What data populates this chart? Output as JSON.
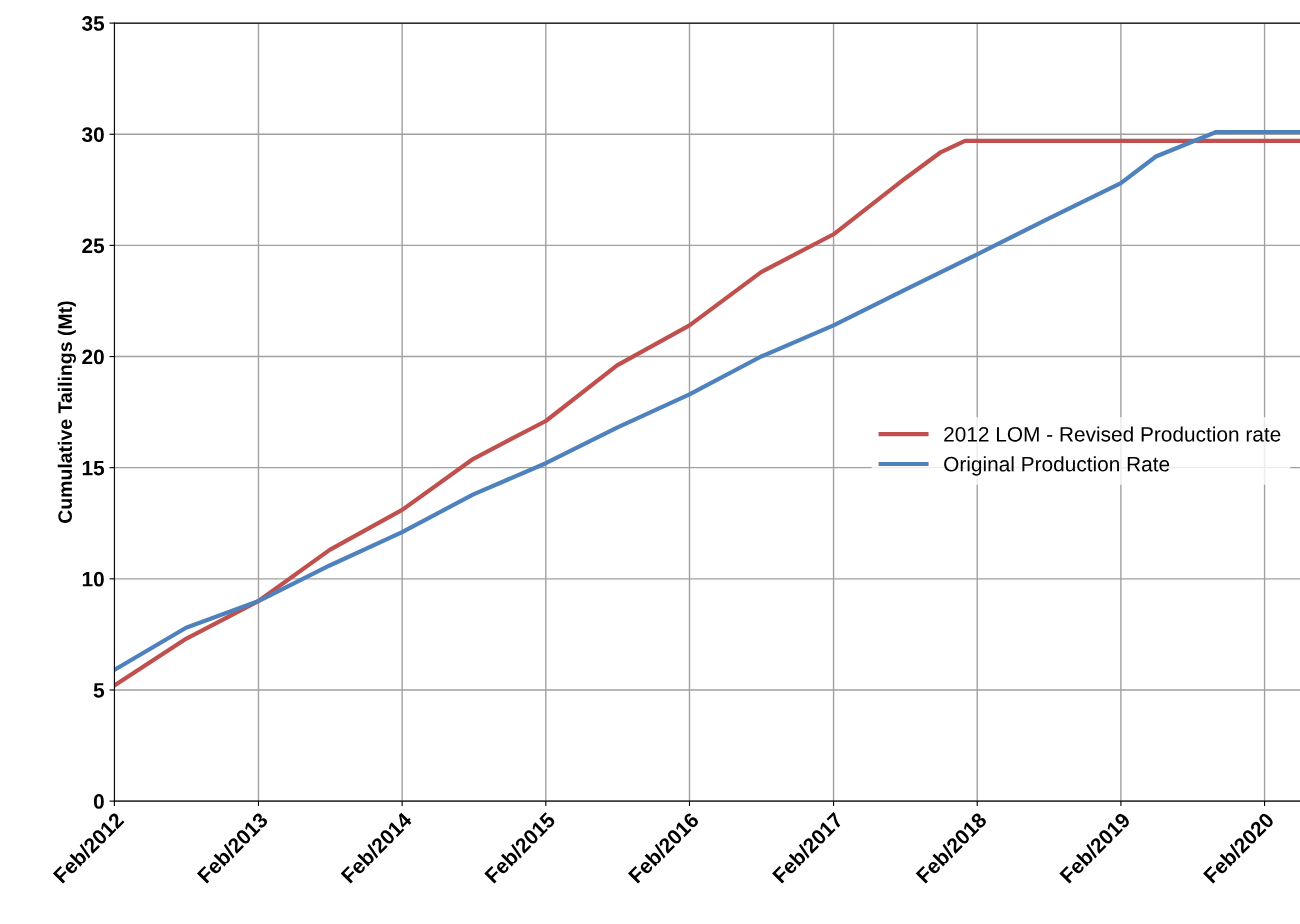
{
  "chart_data": {
    "type": "line",
    "ylabel": "Cumulative Tailings (Mt)",
    "xlim": [
      "2012-02",
      "2020-05"
    ],
    "ylim": [
      0,
      35
    ],
    "yticks": [
      0,
      5,
      10,
      15,
      20,
      25,
      30,
      35
    ],
    "xticks": [
      {
        "value": "2012-02",
        "label": "Feb/2012"
      },
      {
        "value": "2013-02",
        "label": "Feb/2013"
      },
      {
        "value": "2014-02",
        "label": "Feb/2014"
      },
      {
        "value": "2015-02",
        "label": "Feb/2015"
      },
      {
        "value": "2016-02",
        "label": "Feb/2016"
      },
      {
        "value": "2017-02",
        "label": "Feb/2017"
      },
      {
        "value": "2018-02",
        "label": "Feb/2018"
      },
      {
        "value": "2019-02",
        "label": "Feb/2019"
      },
      {
        "value": "2020-02",
        "label": "Feb/2020"
      }
    ],
    "grid": true,
    "legend": "right",
    "marker": "none",
    "line_style": "solid",
    "series": [
      {
        "name": "2012 LOM - Revised Production rate",
        "color": "#c0504d",
        "x": [
          "2012-02",
          "2012-08",
          "2013-02",
          "2013-08",
          "2014-02",
          "2014-08",
          "2015-02",
          "2015-08",
          "2016-02",
          "2016-08",
          "2017-02",
          "2017-08",
          "2017-11",
          "2018-01",
          "2020-05"
        ],
        "values": [
          5.2,
          7.3,
          9.0,
          11.3,
          13.1,
          15.4,
          17.1,
          19.6,
          21.4,
          23.8,
          25.5,
          28.0,
          29.2,
          29.7,
          29.7
        ]
      },
      {
        "name": "Original Production Rate",
        "color": "#4f81bd",
        "x": [
          "2012-02",
          "2012-08",
          "2013-02",
          "2013-08",
          "2014-02",
          "2014-08",
          "2015-02",
          "2015-08",
          "2016-02",
          "2016-08",
          "2017-02",
          "2017-08",
          "2018-02",
          "2018-08",
          "2019-02",
          "2019-05",
          "2019-10",
          "2020-05"
        ],
        "values": [
          5.9,
          7.8,
          9.0,
          10.6,
          12.1,
          13.8,
          15.2,
          16.8,
          18.3,
          20.0,
          21.4,
          23.0,
          24.6,
          26.2,
          27.8,
          29.0,
          30.1,
          30.1
        ]
      }
    ]
  }
}
